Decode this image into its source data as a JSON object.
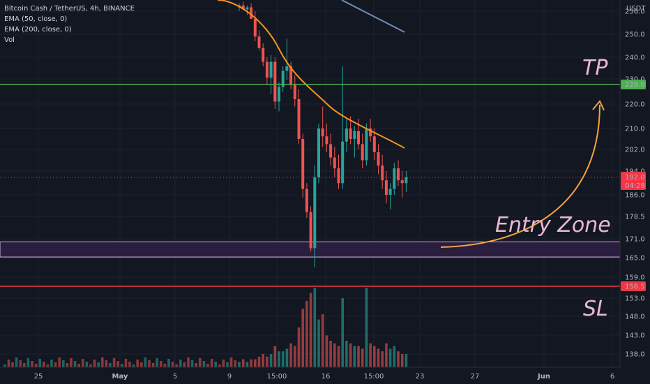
{
  "header": {
    "symbol_line": "Bitcoin Cash / TetherUS, 4h, BINANCE",
    "indicators": [
      "EMA (50, close, 0)",
      "EMA (200, close, 0)",
      "Vol"
    ]
  },
  "price_axis": {
    "currency": "USDT",
    "ticks": [
      "256.0",
      "250.0",
      "240.0",
      "220.0",
      "210.0",
      "202.0",
      "194.0",
      "186.0",
      "178.5",
      "171.0",
      "165.0",
      "159.0",
      "153.0",
      "148.0",
      "143.0",
      "138.0"
    ],
    "ticks_hidden": [
      "230.0"
    ]
  },
  "time_axis": {
    "ticks": [
      "25",
      "May",
      "5",
      "9",
      "15:00",
      "16",
      "15:00",
      "23",
      "27",
      "Jun",
      "6"
    ]
  },
  "annotations": {
    "tp": "TP",
    "sl": "SL",
    "entry": "Entry Zone"
  },
  "markers": {
    "tp": {
      "label": "228.0",
      "color": "#4caf50"
    },
    "sl": {
      "label": "156.5",
      "color": "#f23645"
    },
    "last_price": {
      "label": "192.0",
      "countdown": "04:28",
      "color": "#f23645"
    }
  },
  "colors": {
    "background": "#131722",
    "up": "#26a69a",
    "down": "#ef5350",
    "ema50": "#f7931a",
    "ema200": "#6d8fb5",
    "tp_line": "#4caf50",
    "sl_line": "#f23645",
    "zone_fill": "#2a1e3f",
    "zone_border": "#d7b8ee",
    "arrow": "#f4a340",
    "annotation": "#e8b8d4"
  },
  "chart_data": {
    "type": "candlestick",
    "y_scale": "linear",
    "ylim": [
      136,
      260
    ],
    "grid": true,
    "candles_ohlc": [
      [
        258,
        260,
        256,
        259
      ],
      [
        259,
        261,
        257,
        257
      ],
      [
        257,
        259,
        255,
        258
      ],
      [
        258,
        260,
        254,
        254
      ],
      [
        254,
        256,
        247,
        249
      ],
      [
        249,
        251,
        243,
        244
      ],
      [
        244,
        246,
        236,
        238
      ],
      [
        238,
        240,
        228,
        231
      ],
      [
        231,
        241,
        224,
        238
      ],
      [
        238,
        240,
        218,
        221
      ],
      [
        221,
        229,
        217,
        227
      ],
      [
        227,
        236,
        225,
        234
      ],
      [
        234,
        248,
        230,
        236
      ],
      [
        236,
        238,
        226,
        228
      ],
      [
        228,
        232,
        219,
        222
      ],
      [
        222,
        226,
        204,
        206
      ],
      [
        206,
        208,
        185,
        188
      ],
      [
        188,
        190,
        178,
        180
      ],
      [
        180,
        182,
        167,
        168
      ],
      [
        168,
        196,
        162,
        192
      ],
      [
        192,
        212,
        190,
        210
      ],
      [
        210,
        219,
        203,
        207
      ],
      [
        207,
        212,
        201,
        204
      ],
      [
        204,
        208,
        196,
        199
      ],
      [
        199,
        203,
        192,
        195
      ],
      [
        195,
        200,
        188,
        190
      ],
      [
        190,
        236,
        188,
        205
      ],
      [
        205,
        214,
        201,
        210
      ],
      [
        210,
        215,
        204,
        206
      ],
      [
        206,
        211,
        199,
        209
      ],
      [
        209,
        214,
        202,
        204
      ],
      [
        204,
        208,
        195,
        198
      ],
      [
        198,
        212,
        196,
        210
      ],
      [
        210,
        214,
        205,
        207
      ],
      [
        207,
        210,
        198,
        201
      ],
      [
        201,
        204,
        193,
        196
      ],
      [
        196,
        200,
        188,
        191
      ],
      [
        191,
        194,
        183,
        186
      ],
      [
        186,
        190,
        181,
        188
      ],
      [
        188,
        197,
        186,
        195
      ],
      [
        195,
        198,
        189,
        191
      ],
      [
        191,
        194,
        185,
        190
      ],
      [
        190,
        194,
        187,
        192
      ]
    ],
    "volume": [
      2,
      3,
      2,
      3,
      3,
      4,
      5,
      4,
      5,
      8,
      6,
      6,
      7,
      9,
      8,
      15,
      22,
      25,
      28,
      30,
      18,
      20,
      12,
      10,
      9,
      8,
      26,
      10,
      9,
      8,
      8,
      7,
      30,
      9,
      8,
      7,
      6,
      9,
      7,
      8,
      6,
      5,
      5
    ],
    "ema50": [
      {
        "x": 0,
        "y": 262
      },
      {
        "x": 10,
        "y": 252
      },
      {
        "x": 20,
        "y": 232
      },
      {
        "x": 30,
        "y": 214
      },
      {
        "x": 38,
        "y": 207
      },
      {
        "x": 42,
        "y": 203
      }
    ],
    "ema200": [
      {
        "x": 0,
        "y": 271
      },
      {
        "x": 20,
        "y": 265
      },
      {
        "x": 40,
        "y": 256
      }
    ],
    "levels": {
      "tp": 228.0,
      "sl": 156.5,
      "entry_zone": [
        165.2,
        170.0
      ]
    }
  }
}
